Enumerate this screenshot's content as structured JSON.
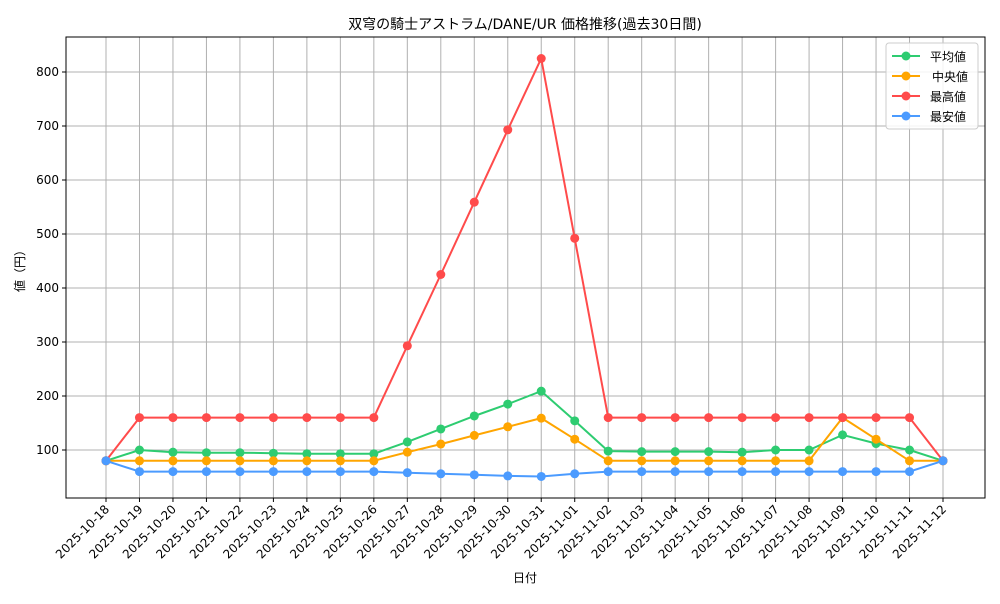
{
  "chart_data": {
    "type": "line",
    "title": "双穹の騎士アストラム/DANE/UR 価格推移(過去30日間)",
    "xlabel": "日付",
    "ylabel": "値（円）",
    "ylim": [
      10,
      865
    ],
    "yticks": [
      100,
      200,
      300,
      400,
      500,
      600,
      700,
      800
    ],
    "grid": true,
    "legend_position": "upper right",
    "categories": [
      "2025-10-18",
      "2025-10-19",
      "2025-10-20",
      "2025-10-21",
      "2025-10-22",
      "2025-10-23",
      "2025-10-24",
      "2025-10-25",
      "2025-10-26",
      "2025-10-27",
      "2025-10-28",
      "2025-10-29",
      "2025-10-30",
      "2025-10-31",
      "2025-11-01",
      "2025-11-02",
      "2025-11-03",
      "2025-11-04",
      "2025-11-05",
      "2025-11-06",
      "2025-11-07",
      "2025-11-08",
      "2025-11-09",
      "2025-11-10",
      "2025-11-11",
      "2025-11-12"
    ],
    "series": [
      {
        "name": "平均値",
        "color": "#2ecc71",
        "values": [
          80,
          100,
          96,
          95,
          95,
          94,
          93,
          93,
          93,
          115,
          139,
          163,
          185,
          209,
          154,
          98,
          97,
          97,
          97,
          96,
          100,
          100,
          128,
          112,
          100,
          80
        ]
      },
      {
        "name": "中央値",
        "color": "#ffa500",
        "values": [
          80,
          80,
          80,
          80,
          80,
          80,
          80,
          80,
          80,
          96,
          111,
          127,
          143,
          159,
          120,
          80,
          80,
          80,
          80,
          80,
          80,
          80,
          160,
          120,
          80,
          80
        ]
      },
      {
        "name": "最高値",
        "color": "#ff4b4b",
        "values": [
          80,
          160,
          160,
          160,
          160,
          160,
          160,
          160,
          160,
          293,
          425,
          559,
          693,
          825,
          492,
          160,
          160,
          160,
          160,
          160,
          160,
          160,
          160,
          160,
          160,
          80
        ]
      },
      {
        "name": "最安値",
        "color": "#4b9bff",
        "values": [
          80,
          60,
          60,
          60,
          60,
          60,
          60,
          60,
          60,
          58,
          56,
          54,
          52,
          51,
          56,
          60,
          60,
          60,
          60,
          60,
          60,
          60,
          60,
          60,
          60,
          80
        ]
      }
    ]
  }
}
